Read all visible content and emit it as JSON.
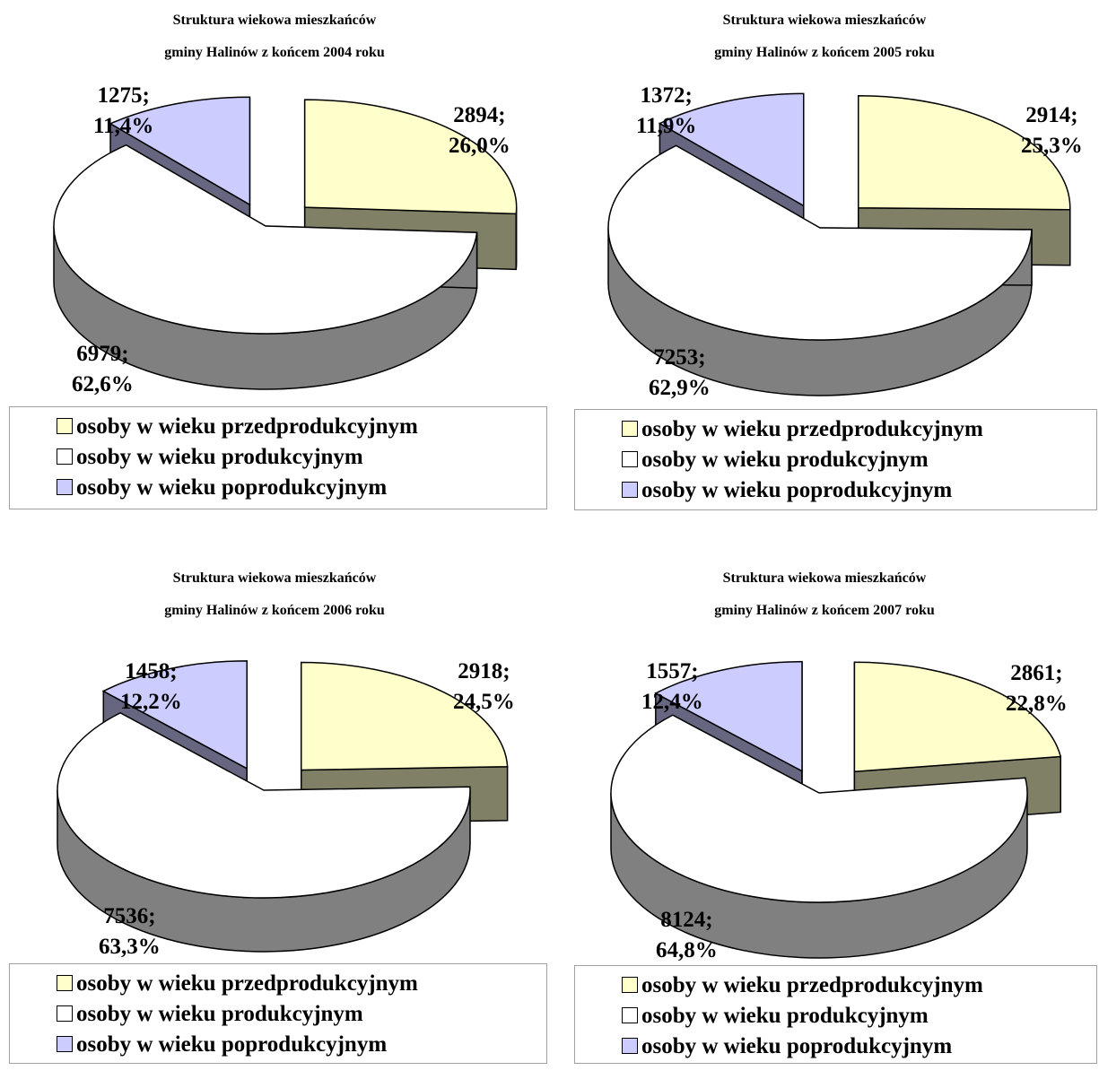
{
  "colors": {
    "predprod": "#ffffcc",
    "predprod_side": "#808066",
    "prod": "#ffffff",
    "prod_side": "#808080",
    "poprod": "#ccccff",
    "poprod_side": "#666680",
    "outline": "#000000"
  },
  "legend_labels": [
    "osoby w wieku przedprodukcyjnym",
    "osoby w wieku produkcyjnym",
    "osoby w wieku poprodukcyjnym"
  ],
  "chart_data": [
    {
      "type": "pie",
      "title_line1": "Struktura wiekowa mieszkańców",
      "title_line2": "gminy Halinów z końcem 2004 roku",
      "categories": [
        "osoby w wieku przedprodukcyjnym",
        "osoby w wieku produkcyjnym",
        "osoby w wieku poprodukcyjnym"
      ],
      "values": [
        2894,
        6979,
        1275
      ],
      "value_labels": [
        "2894;",
        "6979;",
        "1275;"
      ],
      "percent_labels": [
        "26,0%",
        "62,6%",
        "11,4%"
      ]
    },
    {
      "type": "pie",
      "title_line1": "Struktura wiekowa mieszkańców",
      "title_line2": "gminy Halinów z końcem 2005 roku",
      "categories": [
        "osoby w wieku przedprodukcyjnym",
        "osoby w wieku produkcyjnym",
        "osoby w wieku poprodukcyjnym"
      ],
      "values": [
        2914,
        7253,
        1372
      ],
      "value_labels": [
        "2914;",
        "7253;",
        "1372;"
      ],
      "percent_labels": [
        "25,3%",
        "62,9%",
        "11,9%"
      ]
    },
    {
      "type": "pie",
      "title_line1": "Struktura wiekowa mieszkańców",
      "title_line2": "gminy Halinów z końcem 2006 roku",
      "categories": [
        "osoby w wieku przedprodukcyjnym",
        "osoby w wieku produkcyjnym",
        "osoby w wieku poprodukcyjnym"
      ],
      "values": [
        2918,
        7536,
        1458
      ],
      "value_labels": [
        "2918;",
        "7536;",
        "1458;"
      ],
      "percent_labels": [
        "24,5%",
        "63,3%",
        "12,2%"
      ]
    },
    {
      "type": "pie",
      "title_line1": "Struktura wiekowa mieszkańców",
      "title_line2": "gminy Halinów z końcem 2007 roku",
      "categories": [
        "osoby w wieku przedprodukcyjnym",
        "osoby w wieku produkcyjnym",
        "osoby w wieku poprodukcyjnym"
      ],
      "values": [
        2861,
        8124,
        1557
      ],
      "value_labels": [
        "2861;",
        "8124;",
        "1557;"
      ],
      "percent_labels": [
        "22,8%",
        "64,8%",
        "12,4%"
      ]
    }
  ]
}
